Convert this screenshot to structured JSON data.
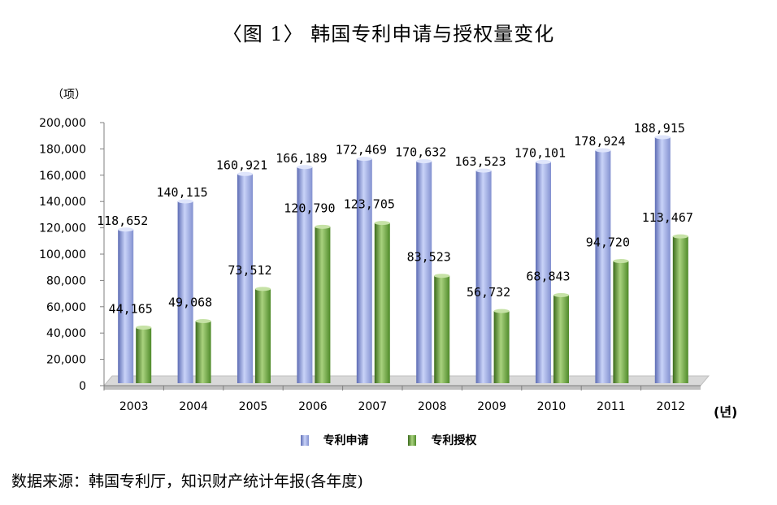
{
  "title": "〈图  1〉 韩国专利申请与授权量变化",
  "y_unit": "（项）",
  "x_unit": "(년)",
  "source": "数据来源：韩国专利厅，知识财产统计年报(各年度)",
  "colors": {
    "applications": "#aab8ee",
    "applications_dark": "#3f4f9a",
    "grants": "#7fb356",
    "grants_dark": "#2f5a16",
    "axis": "#7f7f7f",
    "floor": "#d9d9d9"
  },
  "chart_data": {
    "type": "bar",
    "title": "〈图  1〉 韩国专利申请与授权量变化",
    "xlabel": "(년)",
    "ylabel": "（项）",
    "ylim": [
      0,
      200000
    ],
    "yticks": [
      "0",
      "20,000",
      "40,000",
      "60,000",
      "80,000",
      "100,000",
      "120,000",
      "140,000",
      "160,000",
      "180,000",
      "200,000"
    ],
    "categories": [
      "2003",
      "2004",
      "2005",
      "2006",
      "2007",
      "2008",
      "2009",
      "2010",
      "2011",
      "2012"
    ],
    "series": [
      {
        "name": "专利申请",
        "values": [
          118652,
          140115,
          160921,
          166189,
          172469,
          170632,
          163523,
          170101,
          178924,
          188915
        ],
        "labels": [
          "118,652",
          "140,115",
          "160,921",
          "166,189",
          "172,469",
          "170,632",
          "163,523",
          "170,101",
          "178,924",
          "188,915"
        ]
      },
      {
        "name": "专利授权",
        "values": [
          44165,
          49068,
          73512,
          120790,
          123705,
          83523,
          56732,
          68843,
          94720,
          113467
        ],
        "labels": [
          "44,165",
          "49,068",
          "73,512",
          "120,790",
          "123,705",
          "83,523",
          "56,732",
          "68,843",
          "94,720",
          "113,467"
        ]
      }
    ],
    "legend": {
      "position": "bottom"
    },
    "grid": false
  }
}
